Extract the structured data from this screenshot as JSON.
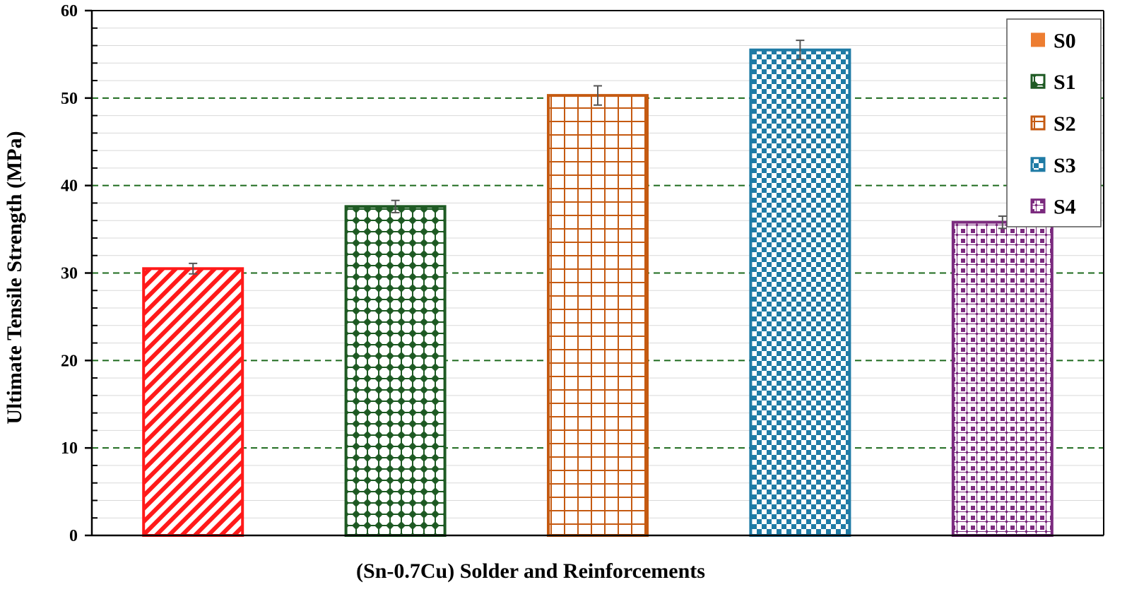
{
  "chart_data": {
    "type": "bar",
    "title": "",
    "xlabel": "(Sn-0.7Cu) Solder and Reinforcements",
    "ylabel": "Ultimate Tensile Strength (MPa)",
    "ylim": [
      0,
      60
    ],
    "yticks": [
      "0",
      "10",
      "20",
      "30",
      "40",
      "50",
      "60"
    ],
    "minor_grid_step": 2,
    "grid": true,
    "legend_position": "top-right",
    "categories": [
      "S0",
      "S1",
      "S2",
      "S3",
      "S4"
    ],
    "series": [
      {
        "name": "S0",
        "value": 30.5,
        "error": 0.6,
        "color": "#ff1a1a",
        "legend_color": "#ed7d31",
        "pattern": "diagonal-stripes"
      },
      {
        "name": "S1",
        "value": 37.6,
        "error": 0.7,
        "color": "#1e5a23",
        "legend_color": "#1e5a23",
        "pattern": "diamonds"
      },
      {
        "name": "S2",
        "value": 50.3,
        "error": 1.1,
        "color": "#c55a11",
        "legend_color": "#c55a11",
        "pattern": "grid"
      },
      {
        "name": "S3",
        "value": 55.5,
        "error": 1.1,
        "color": "#1f7ba5",
        "legend_color": "#1f7ba5",
        "pattern": "checkerboard"
      },
      {
        "name": "S4",
        "value": 35.8,
        "error": 0.7,
        "color": "#7b2a7e",
        "legend_color": "#7b2a7e",
        "pattern": "weave"
      }
    ],
    "colors": {
      "major_grid": "#1e6b1e",
      "minor_grid": "#d9d9d9",
      "axis": "#000000",
      "error_bar": "#555555"
    }
  }
}
